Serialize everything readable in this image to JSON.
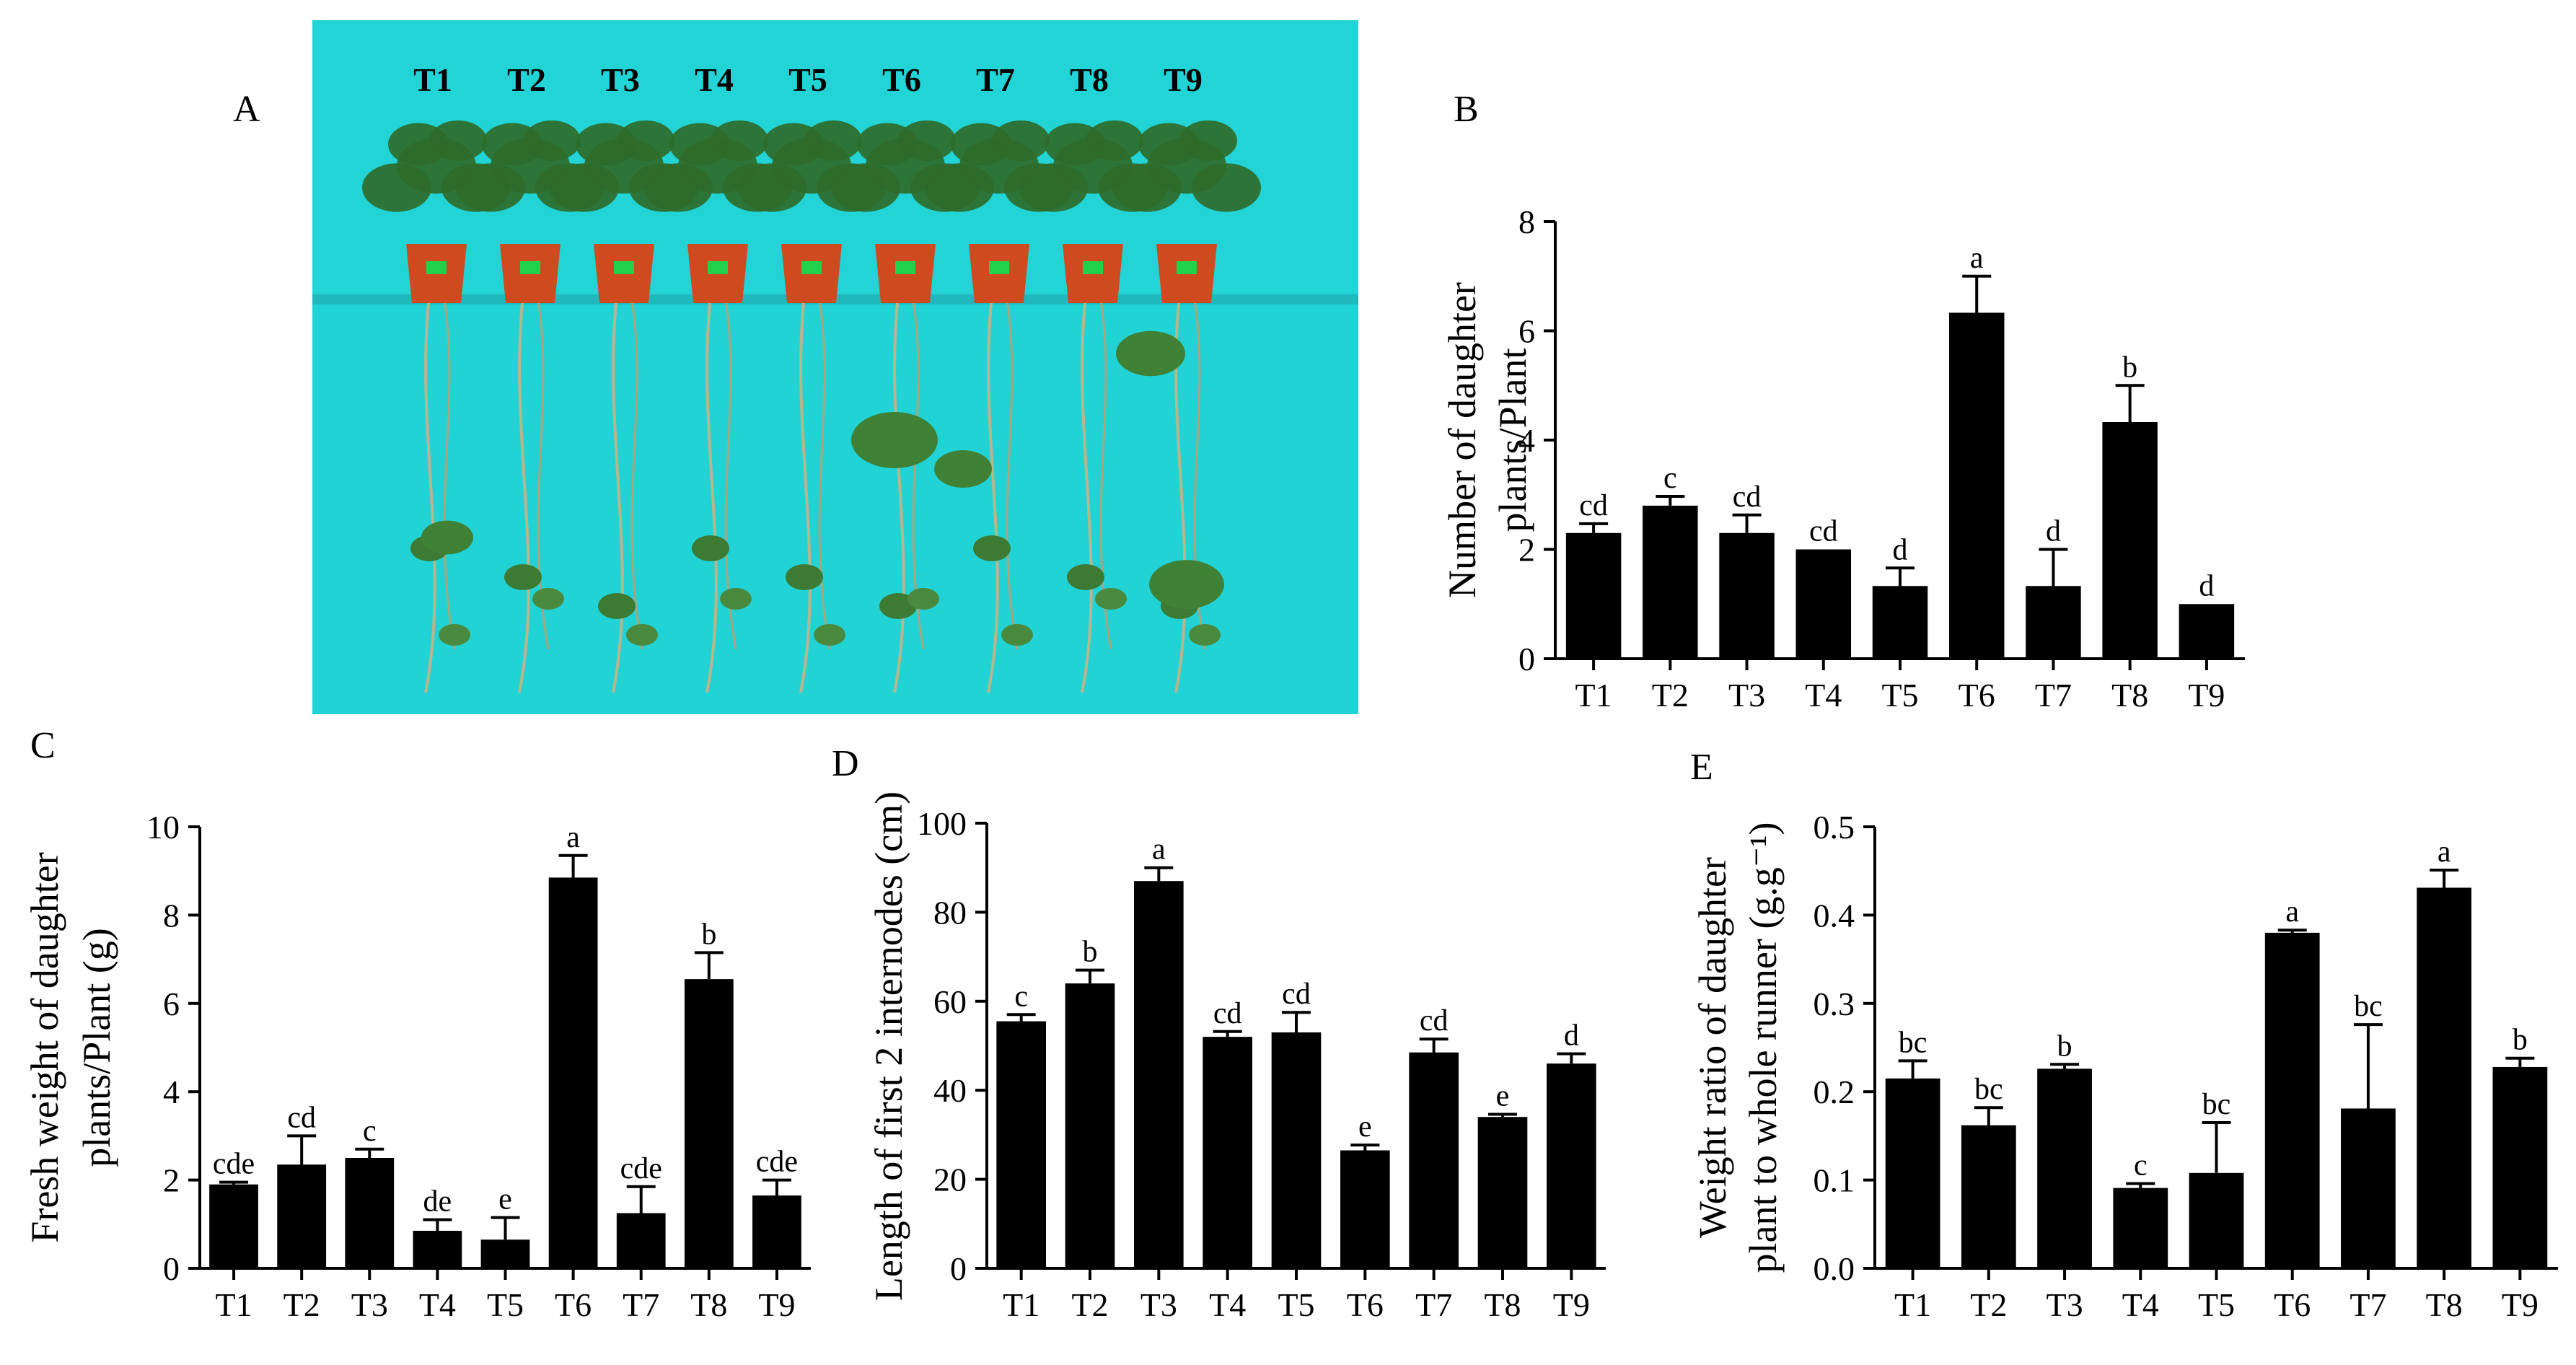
{
  "panel_a": {
    "letter": "A",
    "labels": [
      "T1",
      "T2",
      "T3",
      "T4",
      "T5",
      "T6",
      "T7",
      "T8",
      "T9"
    ],
    "background_color": "#22d3d6",
    "pot_color": "#cf4a1f",
    "leaf_color": "#2f6b2a"
  },
  "chart_data": [
    {
      "id": "B",
      "letter": "B",
      "type": "bar",
      "categories": [
        "T1",
        "T2",
        "T3",
        "T4",
        "T5",
        "T6",
        "T7",
        "T8",
        "T9"
      ],
      "values": [
        2.3,
        2.8,
        2.3,
        2.0,
        1.33,
        6.33,
        1.33,
        4.33,
        1.0
      ],
      "errors": [
        0.17,
        0.17,
        0.33,
        0.0,
        0.33,
        0.67,
        0.67,
        0.67,
        0.0
      ],
      "letters": [
        "cd",
        "c",
        "cd",
        "cd",
        "d",
        "a",
        "d",
        "b",
        "d"
      ],
      "ylabel_lines": [
        "Number of daughter",
        "plants/Plant"
      ],
      "ylim": [
        0,
        8
      ],
      "yticks": [
        0,
        2,
        4,
        6,
        8
      ],
      "ytick_labels": [
        "0",
        "2",
        "4",
        "6",
        "8"
      ],
      "bar_color": "#000000"
    },
    {
      "id": "C",
      "letter": "C",
      "type": "bar",
      "categories": [
        "T1",
        "T2",
        "T3",
        "T4",
        "T5",
        "T6",
        "T7",
        "T8",
        "T9"
      ],
      "values": [
        1.9,
        2.35,
        2.5,
        0.85,
        0.65,
        8.85,
        1.25,
        6.55,
        1.65
      ],
      "errors": [
        0.05,
        0.65,
        0.2,
        0.25,
        0.5,
        0.5,
        0.6,
        0.6,
        0.35
      ],
      "letters": [
        "cde",
        "cd",
        "c",
        "de",
        "e",
        "a",
        "cde",
        "b",
        "cde"
      ],
      "ylabel_lines": [
        "Fresh weight of daughter",
        "plants/Plant (g)"
      ],
      "ylim": [
        0,
        10
      ],
      "yticks": [
        0,
        2,
        4,
        6,
        8,
        10
      ],
      "ytick_labels": [
        "0",
        "2",
        "4",
        "6",
        "8",
        "10"
      ],
      "bar_color": "#000000"
    },
    {
      "id": "D",
      "letter": "D",
      "type": "bar",
      "categories": [
        "T1",
        "T2",
        "T3",
        "T4",
        "T5",
        "T6",
        "T7",
        "T8",
        "T9"
      ],
      "values": [
        55.5,
        64,
        87,
        52,
        53,
        26.5,
        48.5,
        34,
        46
      ],
      "errors": [
        1.5,
        3,
        3,
        1.2,
        4.5,
        1.2,
        3,
        0.6,
        2.2
      ],
      "letters": [
        "c",
        "b",
        "a",
        "cd",
        "cd",
        "e",
        "cd",
        "e",
        "d"
      ],
      "ylabel_lines": [
        "Length of first 2 internodes (cm)"
      ],
      "ylim": [
        0,
        100
      ],
      "yticks": [
        0,
        20,
        40,
        60,
        80,
        100
      ],
      "ytick_labels": [
        "0",
        "20",
        "40",
        "60",
        "80",
        "100"
      ],
      "bar_color": "#000000"
    },
    {
      "id": "E",
      "letter": "E",
      "type": "bar",
      "categories": [
        "T1",
        "T2",
        "T3",
        "T4",
        "T5",
        "T6",
        "T7",
        "T8",
        "T9"
      ],
      "values": [
        0.215,
        0.162,
        0.226,
        0.091,
        0.108,
        0.38,
        0.181,
        0.431,
        0.228
      ],
      "errors": [
        0.02,
        0.02,
        0.005,
        0.005,
        0.057,
        0.003,
        0.095,
        0.02,
        0.01
      ],
      "letters": [
        "bc",
        "bc",
        "b",
        "c",
        "bc",
        "a",
        "bc",
        "a",
        "b"
      ],
      "ylabel_lines": [
        "Weight ratio of daughter",
        "plant to whole runner (g.g⁻¹)"
      ],
      "ylim": [
        0,
        0.5
      ],
      "yticks": [
        0,
        0.1,
        0.2,
        0.3,
        0.4,
        0.5
      ],
      "ytick_labels": [
        "0.0",
        "0.1",
        "0.2",
        "0.3",
        "0.4",
        "0.5"
      ],
      "bar_color": "#000000"
    }
  ]
}
